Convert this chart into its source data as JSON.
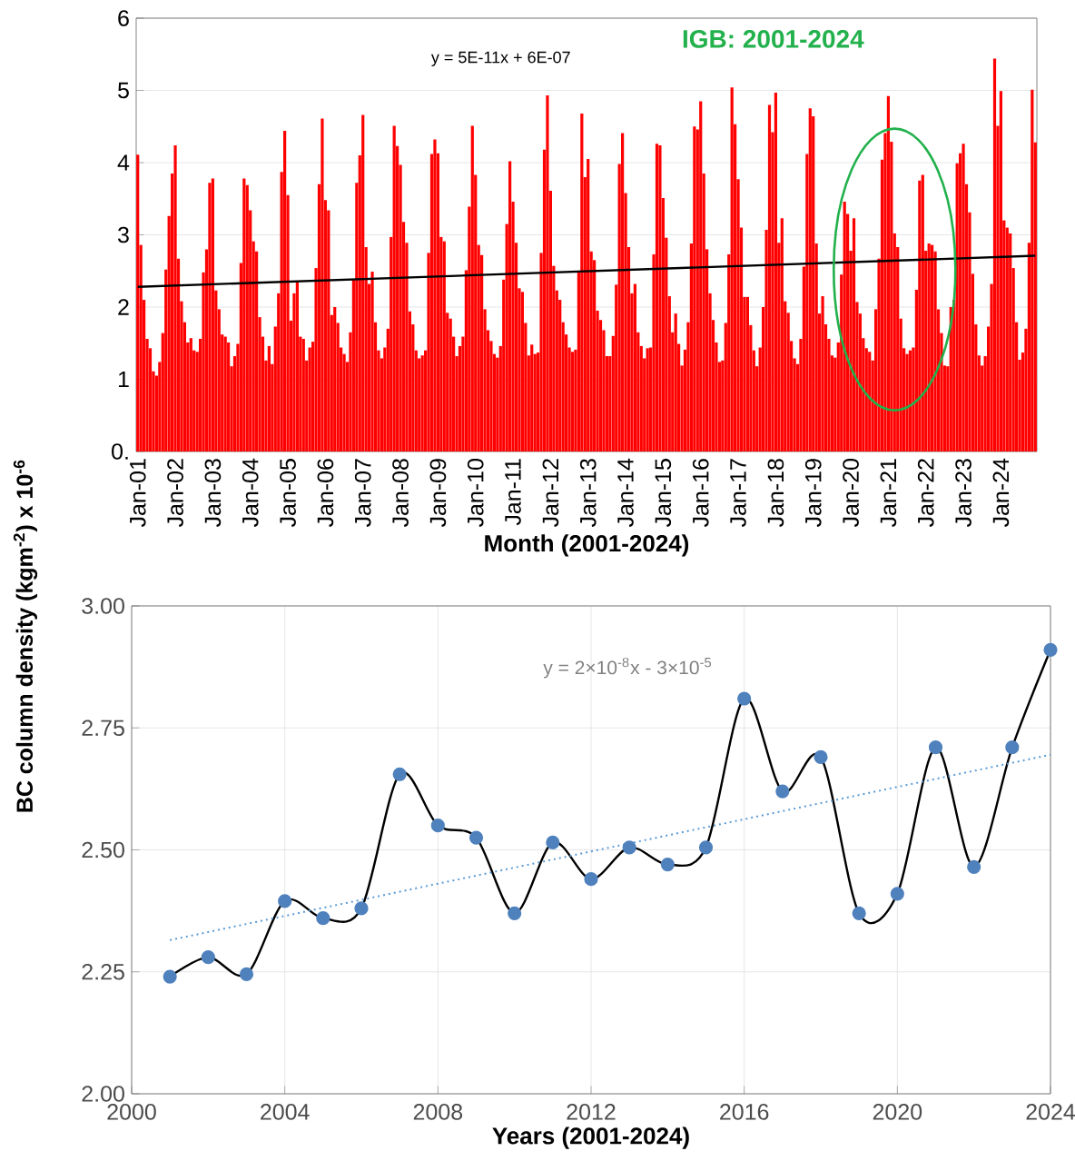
{
  "chart_data": [
    {
      "type": "bar",
      "xlabel": "Month (2001-2024)",
      "ylabel": "BC column density (kgm$^{-2}$) x 10$^{-6}$",
      "annotations": [
        "y = 5E-11x + 6E-07",
        "IGB: 2001-2024"
      ],
      "categories": [
        "Jan-01",
        null,
        null,
        null,
        null,
        null,
        null,
        null,
        null,
        null,
        null,
        null,
        "Jan-02",
        null,
        null,
        null,
        null,
        null,
        null,
        null,
        null,
        null,
        null,
        null,
        "Jan-03",
        null,
        null,
        null,
        null,
        null,
        null,
        null,
        null,
        null,
        null,
        null,
        "Jan-04",
        null,
        null,
        null,
        null,
        null,
        null,
        null,
        null,
        null,
        null,
        null,
        "Jan-05",
        null,
        null,
        null,
        null,
        null,
        null,
        null,
        null,
        null,
        null,
        null,
        "Jan-06",
        null,
        null,
        null,
        null,
        null,
        null,
        null,
        null,
        null,
        null,
        null,
        "Jan-07",
        null,
        null,
        null,
        null,
        null,
        null,
        null,
        null,
        null,
        null,
        null,
        "Jan-08",
        null,
        null,
        null,
        null,
        null,
        null,
        null,
        null,
        null,
        null,
        null,
        "Jan-09",
        null,
        null,
        null,
        null,
        null,
        null,
        null,
        null,
        null,
        null,
        null,
        "Jan-10",
        null,
        null,
        null,
        null,
        null,
        null,
        null,
        null,
        null,
        null,
        null,
        "Jan-11",
        null,
        null,
        null,
        null,
        null,
        null,
        null,
        null,
        null,
        null,
        null,
        "Jan-12",
        null,
        null,
        null,
        null,
        null,
        null,
        null,
        null,
        null,
        null,
        null,
        "Jan-13",
        null,
        null,
        null,
        null,
        null,
        null,
        null,
        null,
        null,
        null,
        null,
        "Jan-14",
        null,
        null,
        null,
        null,
        null,
        null,
        null,
        null,
        null,
        null,
        null,
        "Jan-15",
        null,
        null,
        null,
        null,
        null,
        null,
        null,
        null,
        null,
        null,
        null,
        "Jan-16",
        null,
        null,
        null,
        null,
        null,
        null,
        null,
        null,
        null,
        null,
        null,
        "Jan-17",
        null,
        null,
        null,
        null,
        null,
        null,
        null,
        null,
        null,
        null,
        null,
        "Jan-18",
        null,
        null,
        null,
        null,
        null,
        null,
        null,
        null,
        null,
        null,
        null,
        "Jan-19",
        null,
        null,
        null,
        null,
        null,
        null,
        null,
        null,
        null,
        null,
        null,
        "Jan-20",
        null,
        null,
        null,
        null,
        null,
        null,
        null,
        null,
        null,
        null,
        null,
        "Jan-21",
        null,
        null,
        null,
        null,
        null,
        null,
        null,
        null,
        null,
        null,
        null,
        "Jan-22",
        null,
        null,
        null,
        null,
        null,
        null,
        null,
        null,
        null,
        null,
        null,
        "Jan-23",
        null,
        null,
        null,
        null,
        null,
        null,
        null,
        null,
        null,
        null,
        null,
        "Jan-24",
        null,
        null,
        null,
        null,
        null,
        null,
        null,
        null,
        null,
        null,
        null
      ],
      "series": [
        {
          "type": "bar",
          "color": "#ff0000",
          "values": [
            4.11,
            2.86,
            2.1,
            1.56,
            1.43,
            1.11,
            1.05,
            1.24,
            1.64,
            2.52,
            3.26,
            3.85,
            4.24,
            2.67,
            2.08,
            1.79,
            1.51,
            1.57,
            1.4,
            1.38,
            1.56,
            2.48,
            2.8,
            3.72,
            3.78,
            2.23,
            1.97,
            1.62,
            1.59,
            1.51,
            1.18,
            1.32,
            1.49,
            2.61,
            3.78,
            3.69,
            3.34,
            2.91,
            2.77,
            1.86,
            1.59,
            1.26,
            1.46,
            1.21,
            1.73,
            2.19,
            3.87,
            4.44,
            3.55,
            1.81,
            2.19,
            2.34,
            1.59,
            1.56,
            1.26,
            1.44,
            1.52,
            2.54,
            3.7,
            4.61,
            3.48,
            3.34,
            1.89,
            2.0,
            1.78,
            1.44,
            1.35,
            1.24,
            1.65,
            2.38,
            3.72,
            4.1,
            4.66,
            2.83,
            2.32,
            2.49,
            1.79,
            1.4,
            1.29,
            1.44,
            1.7,
            2.97,
            4.51,
            4.23,
            3.97,
            3.18,
            2.89,
            1.94,
            1.76,
            1.4,
            1.29,
            1.33,
            1.4,
            2.75,
            4.12,
            4.32,
            4.13,
            2.97,
            2.91,
            1.92,
            1.84,
            1.59,
            1.32,
            1.46,
            1.59,
            2.51,
            3.39,
            4.51,
            3.83,
            2.86,
            2.72,
            1.97,
            1.68,
            1.53,
            1.35,
            1.3,
            1.46,
            2.38,
            3.15,
            4.02,
            3.46,
            2.89,
            2.26,
            2.21,
            1.78,
            1.33,
            1.48,
            1.35,
            1.37,
            2.75,
            4.18,
            4.93,
            3.61,
            2.57,
            2.23,
            2.1,
            1.79,
            1.62,
            1.44,
            1.38,
            1.41,
            2.49,
            4.68,
            3.8,
            4.05,
            2.77,
            2.65,
            1.95,
            1.82,
            1.68,
            1.32,
            1.32,
            1.6,
            2.31,
            3.98,
            4.41,
            3.58,
            2.83,
            2.19,
            2.32,
            1.65,
            1.46,
            1.29,
            1.43,
            1.44,
            2.73,
            4.26,
            4.24,
            3.51,
            2.96,
            2.15,
            1.65,
            1.91,
            1.49,
            1.19,
            1.41,
            1.79,
            2.88,
            4.5,
            4.46,
            4.85,
            3.85,
            2.8,
            2.19,
            1.82,
            1.51,
            1.24,
            1.26,
            1.78,
            2.73,
            5.04,
            4.53,
            3.77,
            3.1,
            2.14,
            2.14,
            1.75,
            1.4,
            1.18,
            1.44,
            2.0,
            3.07,
            4.8,
            4.42,
            4.97,
            2.89,
            3.23,
            2.08,
            1.92,
            1.53,
            1.29,
            1.21,
            1.56,
            2.56,
            4.12,
            4.75,
            4.64,
            2.88,
            1.91,
            2.15,
            1.76,
            1.56,
            1.33,
            1.3,
            1.51,
            2.45,
            3.46,
            3.29,
            2.78,
            3.23,
            2.07,
            1.91,
            1.57,
            1.43,
            1.38,
            1.26,
            1.97,
            2.67,
            4.04,
            4.41,
            4.92,
            4.29,
            3.02,
            2.83,
            1.84,
            1.43,
            1.35,
            1.4,
            1.44,
            2.24,
            3.75,
            3.83,
            2.78,
            2.88,
            2.86,
            2.77,
            1.97,
            1.64,
            1.19,
            1.18,
            2.0,
            2.1,
            3.99,
            4.13,
            4.26,
            3.7,
            3.31,
            2.46,
            1.76,
            1.33,
            1.19,
            1.32,
            1.73,
            2.32,
            5.44,
            4.51,
            4.99,
            3.2,
            3.1,
            3.02,
            2.54,
            1.79,
            1.27,
            1.37,
            1.7,
            2.89,
            5.01,
            4.28
          ]
        },
        {
          "type": "line",
          "color": "#000000",
          "values": [
            2.28,
            null,
            null,
            null,
            null,
            null,
            null,
            null,
            null,
            null,
            null,
            null,
            null,
            null,
            null,
            null,
            null,
            null,
            null,
            null,
            null,
            null,
            null,
            null,
            null,
            null,
            null,
            null,
            null,
            null,
            null,
            null,
            null,
            null,
            null,
            null,
            null,
            null,
            null,
            null,
            null,
            null,
            null,
            null,
            null,
            null,
            null,
            null,
            null,
            null,
            null,
            null,
            null,
            null,
            null,
            null,
            null,
            null,
            null,
            null,
            null,
            null,
            null,
            null,
            null,
            null,
            null,
            null,
            null,
            null,
            null,
            null,
            null,
            null,
            null,
            null,
            null,
            null,
            null,
            null,
            null,
            null,
            null,
            null,
            null,
            null,
            null,
            null,
            null,
            null,
            null,
            null,
            null,
            null,
            null,
            null,
            null,
            null,
            null,
            null,
            null,
            null,
            null,
            null,
            null,
            null,
            null,
            null,
            null,
            null,
            null,
            null,
            null,
            null,
            null,
            null,
            null,
            null,
            null,
            null,
            null,
            null,
            null,
            null,
            null,
            null,
            null,
            null,
            null,
            null,
            null,
            null,
            null,
            null,
            null,
            null,
            null,
            null,
            null,
            null,
            null,
            null,
            null,
            null,
            null,
            null,
            null,
            null,
            null,
            null,
            null,
            null,
            null,
            null,
            null,
            null,
            null,
            null,
            null,
            null,
            null,
            null,
            null,
            null,
            null,
            null,
            null,
            null,
            null,
            null,
            null,
            null,
            null,
            null,
            null,
            null,
            null,
            null,
            null,
            null,
            null,
            null,
            null,
            null,
            null,
            null,
            null,
            null,
            null,
            null,
            null,
            null,
            null,
            null,
            null,
            null,
            null,
            null,
            null,
            null,
            null,
            null,
            null,
            null,
            null,
            null,
            null,
            null,
            null,
            null,
            null,
            null,
            null,
            null,
            null,
            null,
            null,
            null,
            null,
            null,
            null,
            null,
            null,
            null,
            null,
            null,
            null,
            null,
            null,
            null,
            null,
            null,
            null,
            null,
            null,
            null,
            null,
            null,
            null,
            null,
            null,
            null,
            null,
            null,
            null,
            null,
            null,
            null,
            null,
            null,
            null,
            null,
            null,
            null,
            null,
            null,
            null,
            null,
            null,
            null,
            null,
            null,
            null,
            null,
            null,
            null,
            null,
            null,
            null,
            null,
            null,
            null,
            null,
            null,
            null,
            null,
            null,
            null,
            null,
            null,
            null,
            null,
            null,
            null,
            null,
            null,
            null,
            2.71
          ]
        }
      ],
      "ylim": [
        0,
        6
      ],
      "yticks": [
        {
          "value": 0,
          "label": "0."
        },
        1,
        2,
        3,
        4,
        5,
        6
      ],
      "grid": "y"
    },
    {
      "type": "line",
      "xlabel": "Years (2001-2024)",
      "annotations": [
        "y = 2×10$^{-8}$x - 3×10$^{-5}$"
      ],
      "x": [
        2001,
        2002,
        2003,
        2004,
        2005,
        2006,
        2007,
        2008,
        2009,
        2010,
        2011,
        2012,
        2013,
        2014,
        2015,
        2016,
        2017,
        2018,
        2019,
        2020,
        2021,
        2022,
        2023,
        2024
      ],
      "series": [
        {
          "color": "#4f81bd",
          "values": [
            2.24,
            2.28,
            2.245,
            2.395,
            2.36,
            2.38,
            2.655,
            2.55,
            2.525,
            2.37,
            2.515,
            2.44,
            2.505,
            2.47,
            2.505,
            2.81,
            2.62,
            2.69,
            2.37,
            2.41,
            2.71,
            2.465,
            2.71,
            2.91
          ]
        },
        {
          "color": "#5b9bd5",
          "x": [
            2001,
            2024
          ],
          "values": [
            2.315,
            2.695
          ],
          "line_style": "dotted",
          "marker": "none"
        }
      ],
      "xlim": [
        2000,
        2024
      ],
      "xticks": [
        2000,
        2004,
        2008,
        2012,
        2016,
        2020,
        2024
      ],
      "ylim": [
        2,
        3
      ],
      "yticks": [
        {
          "value": 2,
          "label": "2.00"
        },
        {
          "value": 2.25,
          "label": "2.25"
        },
        {
          "value": 2.5,
          "label": "2.50"
        },
        {
          "value": 2.75,
          "label": "2.75"
        },
        {
          "value": 3,
          "label": "3.00"
        }
      ],
      "grid": true,
      "marker": "circle"
    }
  ]
}
